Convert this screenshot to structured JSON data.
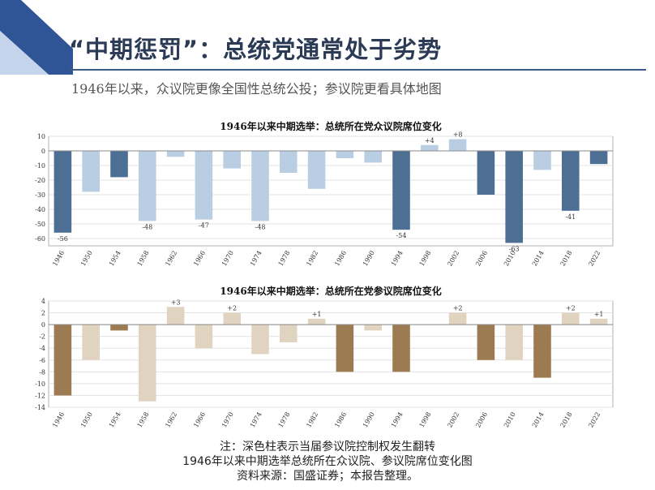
{
  "slide": {
    "title": "“中期惩罚”：总统党通常处于劣势",
    "subtitle": "1946年以来，众议院更像全国性总统公投；参议院更看具体地图",
    "footer": {
      "note": "注：深色柱表示当届参议院控制权发生翻转",
      "caption": "1946年以来中期选举总统所在众议院、参议院席位变化图",
      "source": "资料来源：国盛证券；本报告整理。"
    }
  },
  "colors": {
    "accent": "#2f5597",
    "house_dark": "#4e6f94",
    "house_light": "#b9cde3",
    "senate_dark": "#9c7a52",
    "senate_light": "#e0d4c0"
  },
  "chart_data": [
    {
      "type": "bar",
      "title": "1946年以来中期选举：总统所在党众议院席位变化",
      "categories": [
        "1946",
        "1950",
        "1954",
        "1958",
        "1962",
        "1966",
        "1970",
        "1974",
        "1978",
        "1982",
        "1986",
        "1990",
        "1994",
        "1998",
        "2002",
        "2006",
        "2010",
        "2014",
        "2018",
        "2022"
      ],
      "values": [
        -56,
        -28,
        -18,
        -48,
        -4,
        -47,
        -12,
        -48,
        -15,
        -26,
        -5,
        -8,
        -54,
        4,
        8,
        -30,
        -63,
        -13,
        -41,
        -9
      ],
      "dark": [
        true,
        false,
        true,
        false,
        false,
        false,
        false,
        false,
        false,
        false,
        false,
        false,
        true,
        false,
        false,
        true,
        true,
        false,
        true,
        true
      ],
      "data_labels": [
        "-56",
        "",
        "",
        "-48",
        "",
        "-47",
        "",
        "-48",
        "",
        "",
        "",
        "",
        "-54",
        "+4",
        "+8",
        "",
        "-63",
        "",
        "-41",
        ""
      ],
      "ylim": [
        -65,
        10
      ],
      "yticks": [
        10,
        0,
        -10,
        -20,
        -30,
        -40,
        -50,
        -60
      ],
      "grid": true,
      "legend": "none"
    },
    {
      "type": "bar",
      "title": "1946年以来中期选举：总统所在党参议院席位变化",
      "categories": [
        "1946",
        "1950",
        "1954",
        "1958",
        "1962",
        "1966",
        "1970",
        "1974",
        "1978",
        "1982",
        "1986",
        "1990",
        "1994",
        "1998",
        "2002",
        "2006",
        "2010",
        "2014",
        "2018",
        "2022"
      ],
      "values": [
        -12,
        -6,
        -1,
        -13,
        3,
        -4,
        2,
        -5,
        -3,
        1,
        -8,
        -1,
        -8,
        0,
        2,
        -6,
        -6,
        -9,
        2,
        1
      ],
      "dark": [
        true,
        false,
        true,
        false,
        false,
        false,
        false,
        false,
        false,
        false,
        true,
        false,
        true,
        false,
        false,
        true,
        false,
        true,
        false,
        false
      ],
      "data_labels": [
        "",
        "",
        "",
        "",
        "+3",
        "",
        "+2",
        "",
        "",
        "+1",
        "",
        "",
        "",
        "",
        "+2",
        "",
        "",
        "",
        "+2",
        "+1"
      ],
      "ylim": [
        -14,
        4
      ],
      "yticks": [
        4,
        2,
        0,
        -2,
        -4,
        -6,
        -8,
        -10,
        -12,
        -14
      ],
      "grid": true,
      "legend": "none"
    }
  ]
}
